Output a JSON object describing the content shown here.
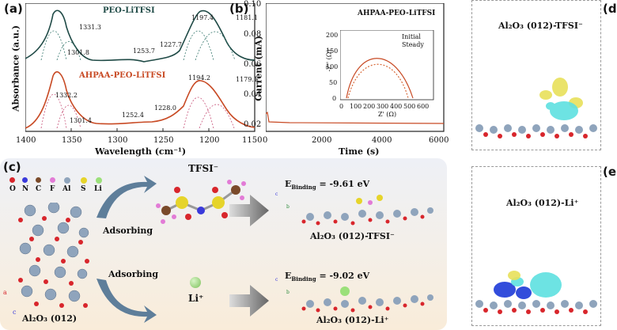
{
  "panel_a": {
    "label": "(a)",
    "ylabel": "Absorbance (a.u.)",
    "xlabel": "Wavelength (cm⁻¹)",
    "xticks": [
      "1400",
      "1350",
      "1300",
      "1250",
      "1200",
      "1150"
    ],
    "series_top": {
      "name": "PEO-LiTFSI",
      "peaks": [
        "1331.3",
        "1301.8",
        "1253.7",
        "1227.7",
        "1197.4",
        "1181.1"
      ]
    },
    "series_bottom": {
      "name": "AHPAA-PEO-LiTFSI",
      "peaks": [
        "1332.2",
        "1301.4",
        "1252.4",
        "1228.0",
        "1194.2",
        "1179.1"
      ]
    }
  },
  "panel_b": {
    "label": "(b)",
    "title": "AHPAA-PEO-LiTFSI",
    "ylabel": "Current (mA)",
    "xlabel": "Time (s)",
    "yticks": [
      "0.10",
      "0.08",
      "0.06",
      "0.04",
      "0.02"
    ],
    "xticks": [
      "0",
      "2000",
      "4000",
      "6000"
    ],
    "inset": {
      "legend": [
        "Initial",
        "Steady"
      ],
      "ylabel": "-Z'' (Ω)",
      "xlabel": "Z' (Ω)",
      "xticks": [
        "0",
        "100",
        "200",
        "300",
        "400",
        "500",
        "600"
      ],
      "yticks": [
        "0",
        "50",
        "100",
        "150",
        "200"
      ]
    }
  },
  "panel_c": {
    "label": "(c)",
    "legend": [
      "O",
      "N",
      "C",
      "F",
      "Al",
      "S",
      "Li"
    ],
    "legend_colors": [
      "#d8262c",
      "#3a3adb",
      "#7a4a2a",
      "#e27bd6",
      "#8fa4bc",
      "#e6d42a",
      "#9be07a"
    ],
    "tfsi": "TFSI⁻",
    "li": "Li⁺",
    "adsorbing1": "Adsorbing",
    "adsorbing2": "Adsorbing",
    "substrate": "Al₂O₃ (012)",
    "binding1": "E",
    "binding1_sub": "Binding",
    "binding1_val": "= -9.61 eV",
    "binding2": "E",
    "binding2_sub": "Binding",
    "binding2_val": "= -9.02 eV",
    "product1": "Al₂O₃ (012)-TFSI⁻",
    "product2": "Al₂O₃ (012)-Li⁺",
    "axis_c": "c",
    "axis_a": "a",
    "axis_b": "b"
  },
  "panel_d": {
    "label": "(d)",
    "title": "Al₂O₃ (012)-TFSI⁻"
  },
  "panel_e": {
    "label": "(e)",
    "title": "Al₂O₃ (012)-Li⁺"
  }
}
